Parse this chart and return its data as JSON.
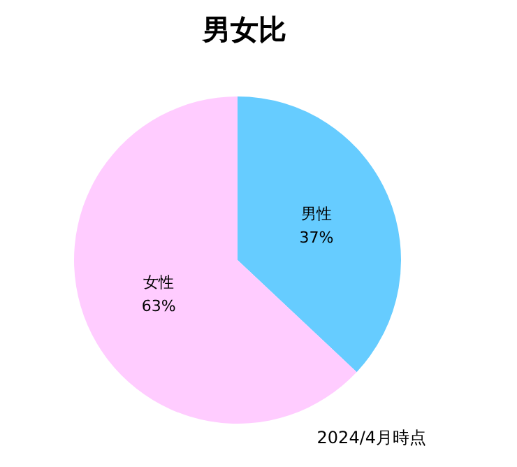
{
  "chart_data": {
    "type": "pie",
    "title": "男女比",
    "categories": [
      "男性",
      "女性"
    ],
    "values": [
      37,
      63
    ],
    "value_labels": [
      "37%",
      "63%"
    ],
    "colors": [
      "#66ccff",
      "#ffccff"
    ],
    "annotations": [
      "2024/4月時点"
    ],
    "legend": false
  }
}
